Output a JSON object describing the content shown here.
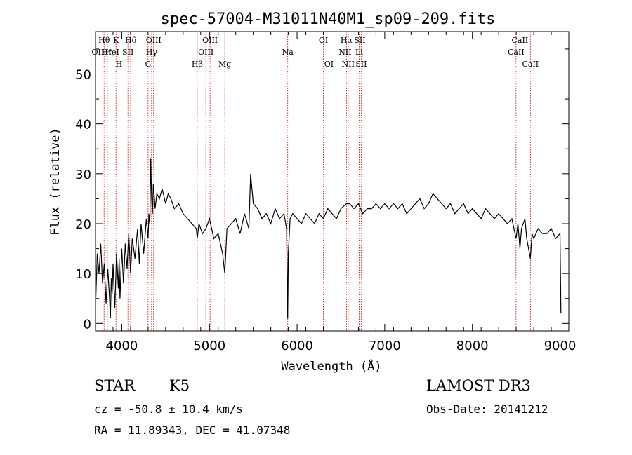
{
  "chart_data": {
    "type": "line",
    "title": "spec-57004-M31011N40M1_sp09-209.fits",
    "xlabel": "Wavelength (Å)",
    "ylabel": "Flux (relative)",
    "xlim": [
      3700,
      9100
    ],
    "ylim": [
      -1.5,
      58.5
    ],
    "xticks": [
      4000,
      5000,
      6000,
      7000,
      8000,
      9000
    ],
    "yticks": [
      0,
      10,
      20,
      30,
      40,
      50
    ],
    "spectrum": {
      "name": "flux",
      "x": [
        3700,
        3720,
        3740,
        3760,
        3780,
        3800,
        3820,
        3840,
        3860,
        3870,
        3880,
        3890,
        3900,
        3920,
        3940,
        3960,
        3970,
        3980,
        4000,
        4020,
        4040,
        4060,
        4080,
        4100,
        4120,
        4150,
        4180,
        4200,
        4220,
        4250,
        4280,
        4300,
        4310,
        4320,
        4330,
        4340,
        4350,
        4360,
        4380,
        4400,
        4430,
        4460,
        4500,
        4530,
        4560,
        4600,
        4650,
        4700,
        4750,
        4800,
        4850,
        4861,
        4880,
        4920,
        4960,
        5000,
        5050,
        5100,
        5150,
        5175,
        5200,
        5250,
        5300,
        5350,
        5400,
        5450,
        5470,
        5500,
        5550,
        5600,
        5650,
        5700,
        5750,
        5800,
        5850,
        5880,
        5893,
        5900,
        5920,
        5950,
        6000,
        6050,
        6100,
        6150,
        6200,
        6250,
        6300,
        6350,
        6400,
        6450,
        6500,
        6563,
        6600,
        6650,
        6700,
        6750,
        6800,
        6850,
        6900,
        6950,
        7000,
        7050,
        7100,
        7150,
        7200,
        7250,
        7300,
        7350,
        7400,
        7450,
        7500,
        7550,
        7600,
        7650,
        7700,
        7750,
        7800,
        7850,
        7900,
        7950,
        8000,
        8050,
        8100,
        8150,
        8200,
        8250,
        8300,
        8350,
        8400,
        8450,
        8498,
        8520,
        8542,
        8560,
        8600,
        8620,
        8662,
        8680,
        8700,
        8750,
        8800,
        8850,
        8900,
        8950,
        9000,
        9010
      ],
      "flux": [
        3,
        14,
        10,
        16,
        8,
        12,
        4,
        11,
        5,
        1,
        9,
        6,
        12,
        3,
        14,
        7,
        13,
        5,
        15,
        8,
        16,
        11,
        18,
        10,
        17,
        13,
        19,
        12,
        20,
        14,
        21,
        17,
        22,
        20,
        33,
        25,
        22,
        28,
        23,
        26,
        25,
        27,
        24,
        26,
        25,
        23,
        24,
        22,
        21,
        20,
        19,
        17,
        20,
        18,
        19,
        21,
        17,
        18,
        14,
        10,
        19,
        20,
        21,
        18,
        22,
        19,
        30,
        24,
        23,
        21,
        22,
        20,
        23,
        21,
        22,
        19,
        1,
        14,
        21,
        22,
        21,
        20,
        22,
        21,
        20,
        22,
        21,
        23,
        22,
        21,
        23,
        24,
        24,
        23,
        24,
        22,
        23,
        23,
        24,
        23,
        24,
        23,
        24,
        23,
        24,
        22,
        23,
        24,
        25,
        23,
        24,
        26,
        25,
        24,
        23,
        24,
        22,
        23,
        24,
        22,
        23,
        22,
        21,
        23,
        22,
        21,
        22,
        21,
        20,
        21,
        17,
        20,
        15,
        19,
        21,
        17,
        13,
        18,
        17,
        19,
        18,
        18,
        19,
        17,
        18,
        2
      ],
      "color": "#000000"
    },
    "spectral_lines": [
      {
        "wavelength": 3727,
        "label": "OII",
        "row": 2
      },
      {
        "wavelength": 3798,
        "label": "Hθ",
        "row": 1
      },
      {
        "wavelength": 3835,
        "label": "Hη",
        "row": 2
      },
      {
        "wavelength": 3889,
        "label": "HeI",
        "row": 2
      },
      {
        "wavelength": 3934,
        "label": "K",
        "row": 1
      },
      {
        "wavelength": 3968,
        "label": "H",
        "row": 3
      },
      {
        "wavelength": 4070,
        "label": "SII",
        "row": 2
      },
      {
        "wavelength": 4101,
        "label": "Hδ",
        "row": 1
      },
      {
        "wavelength": 4300,
        "label": "G",
        "row": 3
      },
      {
        "wavelength": 4340,
        "label": "Hγ",
        "row": 2
      },
      {
        "wavelength": 4363,
        "label": "OIII",
        "row": 1
      },
      {
        "wavelength": 4861,
        "label": "Hβ",
        "row": 3
      },
      {
        "wavelength": 4959,
        "label": "OIII",
        "row": 2
      },
      {
        "wavelength": 5007,
        "label": "OIII",
        "row": 1
      },
      {
        "wavelength": 5175,
        "label": "Mg",
        "row": 3
      },
      {
        "wavelength": 5893,
        "label": "Na",
        "row": 2
      },
      {
        "wavelength": 6300,
        "label": "OI",
        "row": 1
      },
      {
        "wavelength": 6363,
        "label": "OI",
        "row": 3
      },
      {
        "wavelength": 6548,
        "label": "NII",
        "row": 2
      },
      {
        "wavelength": 6563,
        "label": "Hα",
        "row": 1
      },
      {
        "wavelength": 6583,
        "label": "NII",
        "row": 3
      },
      {
        "wavelength": 6708,
        "label": "Li",
        "row": 2
      },
      {
        "wavelength": 6716,
        "label": "SII",
        "row": 1
      },
      {
        "wavelength": 6731,
        "label": "SII",
        "row": 3
      },
      {
        "wavelength": 8498,
        "label": "CaII",
        "row": 2
      },
      {
        "wavelength": 8542,
        "label": "CaII",
        "row": 1
      },
      {
        "wavelength": 8662,
        "label": "CaII",
        "row": 3
      }
    ],
    "line_marker_color": "#cc0000",
    "grid": false,
    "legend": "none"
  },
  "info": {
    "object_class": "STAR",
    "subclass": "K5",
    "survey": "LAMOST DR3",
    "redshift": "cz = -50.8 ± 10.4 km/s",
    "obs_date": "Obs-Date: 20141212",
    "coordinates": "RA =  11.89343, DEC =  41.07348"
  }
}
